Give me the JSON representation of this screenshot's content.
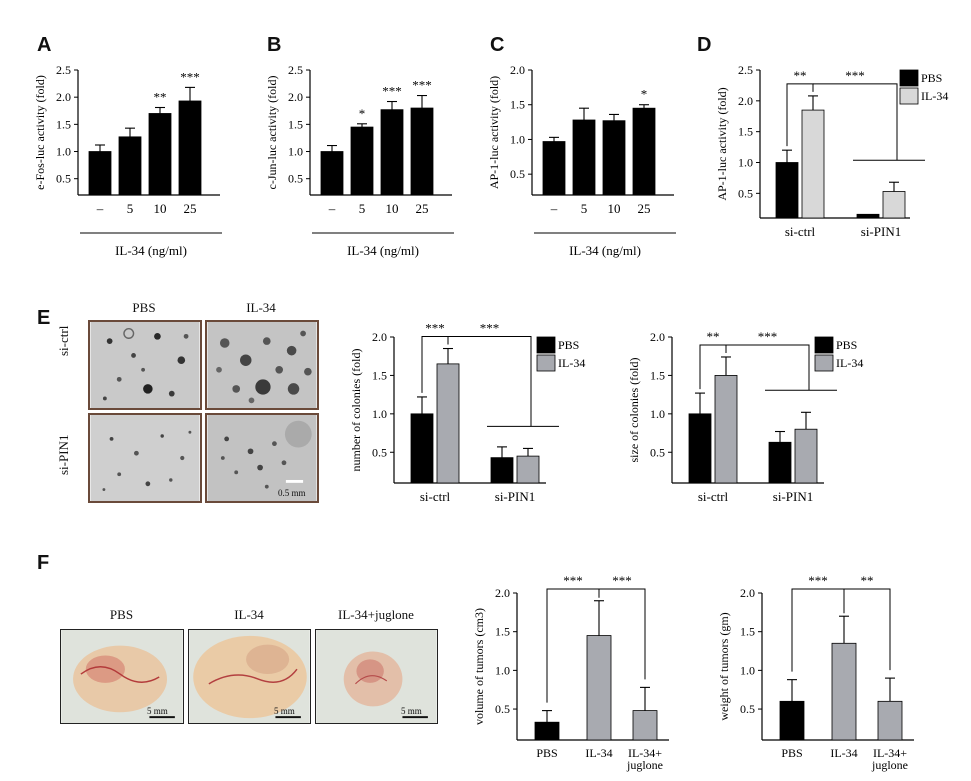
{
  "panels": [
    {
      "letter": "A"
    },
    {
      "letter": "B"
    },
    {
      "letter": "C"
    },
    {
      "letter": "D"
    },
    {
      "letter": "E"
    },
    {
      "letter": "F"
    }
  ],
  "micrographs": {
    "col_labels": [
      "PBS",
      "IL-34"
    ],
    "row_labels": [
      "si-ctrl",
      "si-PIN1"
    ],
    "scale_bar": "0.5 mm"
  },
  "tumor_photos": {
    "labels": [
      "PBS",
      "IL-34",
      "IL-34+juglone"
    ],
    "scale_bars": [
      "5 mm",
      "5 mm",
      "5 mm"
    ]
  },
  "colors": {
    "pbs": "#000000",
    "il34": "#c8c8c8",
    "il34_cross": "#d8d8d8",
    "gray_bar": "#a8aab0"
  },
  "chart_data": [
    {
      "id": "A",
      "type": "bar",
      "categories": [
        "–",
        "5",
        "10",
        "25"
      ],
      "values": [
        1.0,
        1.27,
        1.7,
        1.93
      ],
      "errors": [
        0.12,
        0.16,
        0.11,
        0.25
      ],
      "sig": [
        "",
        "",
        "**",
        "***"
      ],
      "ylabel": "e-Fos-luc activity (fold)",
      "xlabel": "IL-34 (ng/ml)",
      "yticks": [
        "0.5",
        "1.0",
        "1.5",
        "2.0",
        "2.5"
      ],
      "ylim": [
        0.2,
        2.5
      ]
    },
    {
      "id": "B",
      "type": "bar",
      "categories": [
        "–",
        "5",
        "10",
        "25"
      ],
      "values": [
        1.0,
        1.45,
        1.77,
        1.8
      ],
      "errors": [
        0.11,
        0.06,
        0.15,
        0.23
      ],
      "sig": [
        "",
        "*",
        "***",
        "***"
      ],
      "ylabel": "c-Jun-luc activity (fold)",
      "xlabel": "IL-34 (ng/ml)",
      "yticks": [
        "0.5",
        "1.0",
        "1.5",
        "2.0",
        "2.5"
      ],
      "ylim": [
        0.2,
        2.5
      ]
    },
    {
      "id": "C",
      "type": "bar",
      "categories": [
        "–",
        "5",
        "10",
        "25"
      ],
      "values": [
        0.97,
        1.28,
        1.27,
        1.45
      ],
      "errors": [
        0.06,
        0.17,
        0.09,
        0.05
      ],
      "sig": [
        "",
        "",
        "",
        "*"
      ],
      "ylabel": "AP-1-luc activity (fold)",
      "xlabel": "IL-34 (ng/ml)",
      "yticks": [
        "0.5",
        "1.0",
        "1.5",
        "2.0"
      ],
      "ylim": [
        0.2,
        2.0
      ]
    },
    {
      "id": "D",
      "type": "bar",
      "categories": [
        "si-ctrl",
        "si-PIN1"
      ],
      "series": [
        {
          "name": "PBS",
          "values": [
            1.0,
            0.16
          ],
          "errors": [
            0.2,
            0.0
          ]
        },
        {
          "name": "IL-34",
          "values": [
            1.85,
            0.53
          ],
          "errors": [
            0.23,
            0.15
          ]
        }
      ],
      "sig_labels": [
        "**",
        "***"
      ],
      "ylabel": "AP-1-luc activity (fold)",
      "yticks": [
        "0.5",
        "1.0",
        "1.5",
        "2.0",
        "2.5"
      ],
      "ylim": [
        0.1,
        2.5
      ],
      "legend": "top-right"
    },
    {
      "id": "E1",
      "type": "bar",
      "categories": [
        "si-ctrl",
        "si-PIN1"
      ],
      "series": [
        {
          "name": "PBS",
          "values": [
            1.0,
            0.43
          ],
          "errors": [
            0.22,
            0.14
          ]
        },
        {
          "name": "IL-34",
          "values": [
            1.65,
            0.45
          ],
          "errors": [
            0.2,
            0.1
          ]
        }
      ],
      "sig_labels": [
        "***",
        "***"
      ],
      "ylabel": "number of colonies (fold)",
      "yticks": [
        "0.5",
        "1.0",
        "1.5",
        "2.0"
      ],
      "ylim": [
        0.1,
        2.0
      ],
      "legend": "top-right"
    },
    {
      "id": "E2",
      "type": "bar",
      "categories": [
        "si-ctrl",
        "si-PIN1"
      ],
      "series": [
        {
          "name": "PBS",
          "values": [
            1.0,
            0.63
          ],
          "errors": [
            0.27,
            0.14
          ]
        },
        {
          "name": "IL-34",
          "values": [
            1.5,
            0.8
          ],
          "errors": [
            0.24,
            0.22
          ]
        }
      ],
      "sig_labels": [
        "**",
        "***"
      ],
      "ylabel": "size of colonies (fold)",
      "yticks": [
        "0.5",
        "1.0",
        "1.5",
        "2.0"
      ],
      "ylim": [
        0.1,
        2.0
      ],
      "legend": "top-right"
    },
    {
      "id": "F1",
      "type": "bar",
      "categories": [
        "PBS",
        "IL-34",
        "IL-34+ juglone"
      ],
      "values": [
        0.33,
        1.45,
        0.48
      ],
      "errors": [
        0.15,
        0.45,
        0.3
      ],
      "sig_labels": [
        "***",
        "***"
      ],
      "ylabel": "volume of tumors (cm3)",
      "yticks": [
        "0.5",
        "1.0",
        "1.5",
        "2.0"
      ],
      "ylim": [
        0.1,
        2.0
      ]
    },
    {
      "id": "F2",
      "type": "bar",
      "categories": [
        "PBS",
        "IL-34",
        "IL-34+ juglone"
      ],
      "values": [
        0.6,
        1.35,
        0.6
      ],
      "errors": [
        0.28,
        0.35,
        0.3
      ],
      "sig_labels": [
        "***",
        "**"
      ],
      "ylabel": "weight of tumors (gm)",
      "yticks": [
        "0.5",
        "1.0",
        "1.5",
        "2.0"
      ],
      "ylim": [
        0.1,
        2.0
      ]
    }
  ]
}
